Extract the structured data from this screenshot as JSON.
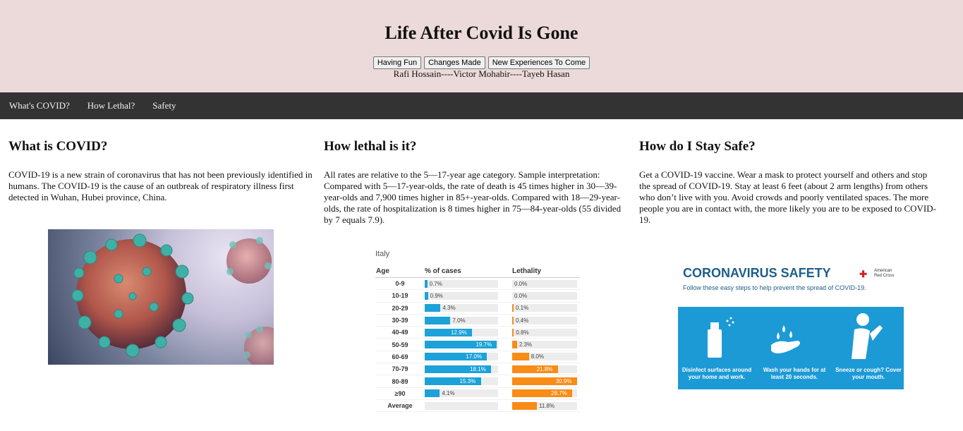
{
  "header": {
    "title": "Life After Covid Is Gone",
    "buttons": [
      "Having Fun",
      "Changes Made",
      "New Experiences To Come"
    ],
    "authors": "Rafi Hossain----Victor Mohabir----Tayeb Hasan"
  },
  "nav": [
    "What's COVID?",
    "How Lethal?",
    "Safety"
  ],
  "sections": [
    {
      "heading": "What is COVID?",
      "text": "COVID-19 is a new strain of coronavirus that has not been previously identified in humans. The COVID-19 is the cause of an outbreak of respiratory illness first detected in Wuhan, Hubei province, China."
    },
    {
      "heading": "How lethal is it?",
      "text": "All rates are relative to the 5—17-year age category. Sample interpretation: Compared with 5—17-year-olds, the rate of death is 45 times higher in 30—39-year-olds and 7,900 times higher in 85+-year-olds. Compared with 18—29-year-olds, the rate of hospitalization is 8 times higher in 75—84-year-olds (55 divided by 7 equals 7.9)."
    },
    {
      "heading": "How do I Stay Safe?",
      "text": "Get a COVID-19 vaccine. Wear a mask to protect yourself and others and stop the spread of COVID-19. Stay at least 6 feet (about 2 arm lengths) from others who don’t live with you. Avoid crowds and poorly ventilated spaces. The more people you are in contact with, the more likely you are to be exposed to COVID-19."
    }
  ],
  "safety_graphic": {
    "title": "CORONAVIRUS SAFETY",
    "subtitle": "Follow these easy steps to help prevent the spread of COVID-19.",
    "org": "American Red Cross",
    "steps": [
      "Disinfect surfaces around your home and work.",
      "Wash your hands for at least 20 seconds.",
      "Sneeze or cough? Cover your mouth."
    ],
    "icons": [
      "spray-bottle-icon",
      "hand-washing-icon",
      "sneeze-person-icon"
    ]
  },
  "colors": {
    "header_bg": "#ecdada",
    "nav_bg": "#333333",
    "cases_bar": "#1ca2d8",
    "lethality_bar": "#f88c17"
  },
  "chart_data": {
    "type": "bar",
    "title": "Italy",
    "columns": [
      "Age",
      "% of cases",
      "Lethality"
    ],
    "categories": [
      "0-9",
      "10-19",
      "20-29",
      "30-39",
      "40-49",
      "50-59",
      "60-69",
      "70-79",
      "80-89",
      "≥90",
      "Average"
    ],
    "series": [
      {
        "name": "% of cases",
        "values": [
          0.7,
          0.9,
          4.3,
          7.0,
          12.9,
          19.7,
          17.0,
          18.1,
          15.3,
          4.1,
          null
        ],
        "labels": [
          "0.7%",
          "0.9%",
          "4.3%",
          "7.0%",
          "12.9%",
          "19.7%",
          "17.0%",
          "18.1%",
          "15.3%",
          "4.1%",
          ""
        ]
      },
      {
        "name": "Lethality",
        "values": [
          0.0,
          0.0,
          0.1,
          0.4,
          0.8,
          2.3,
          8.0,
          21.8,
          30.9,
          28.7,
          11.8
        ],
        "labels": [
          "0.0%",
          "0.0%",
          "0.1%",
          "0.4%",
          "0.8%",
          "2.3%",
          "8.0%",
          "21.8%",
          "30.9%",
          "28.7%",
          "11.8%"
        ]
      }
    ],
    "ylim_cases": [
      0,
      20
    ],
    "ylim_lethality": [
      0,
      31
    ]
  }
}
